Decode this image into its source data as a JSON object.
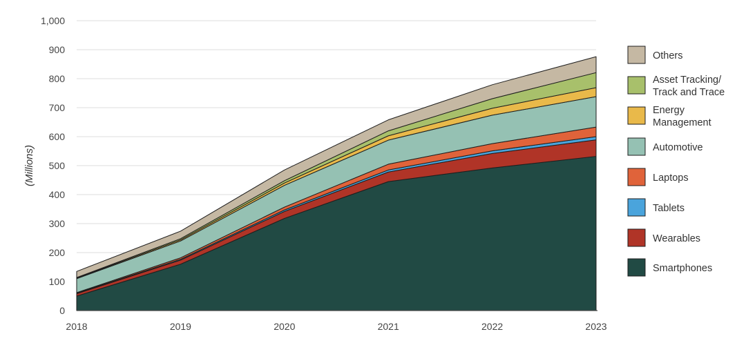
{
  "chart_data": {
    "type": "area",
    "stacked": true,
    "title": "",
    "xlabel": "",
    "ylabel": "(Millions)",
    "ylim": [
      0,
      1000
    ],
    "y_ticks": [
      0,
      100,
      200,
      300,
      400,
      500,
      600,
      700,
      800,
      900,
      1000
    ],
    "y_tick_labels": [
      "0",
      "100",
      "200",
      "300",
      "400",
      "500",
      "600",
      "700",
      "800",
      "900",
      "1,000"
    ],
    "x": [
      "2018",
      "2019",
      "2020",
      "2021",
      "2022",
      "2023"
    ],
    "grid": "horizontal",
    "legend_position": "right",
    "series": [
      {
        "name": "Smartphones",
        "color": "#214a44",
        "values": [
          50,
          160,
          318,
          445,
          492,
          532
        ]
      },
      {
        "name": "Wearables",
        "color": "#b03427",
        "values": [
          8,
          14,
          24,
          33,
          50,
          57
        ]
      },
      {
        "name": "Tablets",
        "color": "#4aa4dc",
        "values": [
          2,
          3,
          5,
          7,
          9,
          11
        ]
      },
      {
        "name": "Laptops",
        "color": "#e0633a",
        "values": [
          2,
          5,
          10,
          20,
          25,
          33
        ]
      },
      {
        "name": "Automotive",
        "color": "#95c1b3",
        "values": [
          48,
          58,
          75,
          83,
          98,
          105
        ]
      },
      {
        "name": "Energy Management",
        "color": "#e9b94a",
        "values": [
          2,
          4,
          8,
          15,
          24,
          31
        ]
      },
      {
        "name": "Asset Tracking/ Track and Trace",
        "color": "#a8c06b",
        "values": [
          2,
          4,
          8,
          17,
          33,
          52
        ]
      },
      {
        "name": "Others",
        "color": "#c5b8a3",
        "values": [
          21,
          26,
          37,
          38,
          48,
          55
        ]
      }
    ],
    "legend": [
      {
        "lines": [
          "Others"
        ]
      },
      {
        "lines": [
          "Asset Tracking/",
          "Track and Trace"
        ]
      },
      {
        "lines": [
          "Energy",
          "Management"
        ]
      },
      {
        "lines": [
          "Automotive"
        ]
      },
      {
        "lines": [
          "Laptops"
        ]
      },
      {
        "lines": [
          "Tablets"
        ]
      },
      {
        "lines": [
          "Wearables"
        ]
      },
      {
        "lines": [
          "Smartphones"
        ]
      }
    ]
  }
}
